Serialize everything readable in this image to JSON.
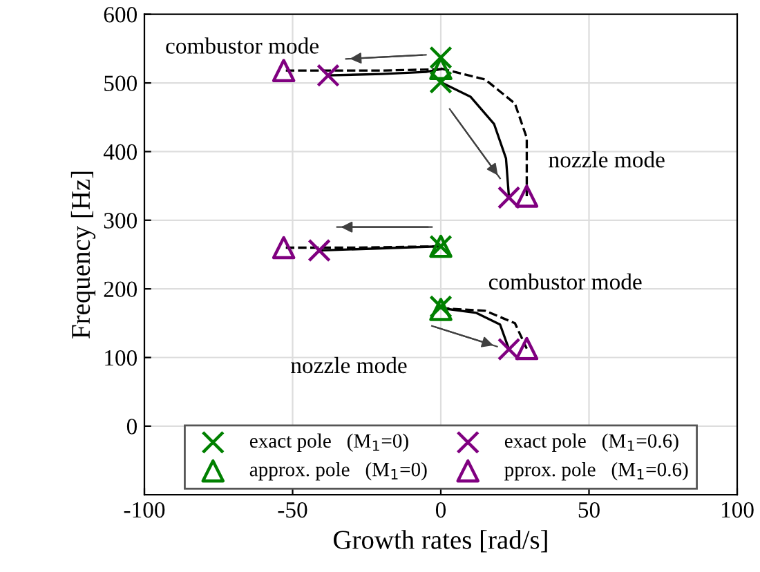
{
  "chart_data": {
    "type": "scatter",
    "xlabel": "Growth rates [rad/s]",
    "ylabel": "Frequency [Hz]",
    "xlim": [
      -100,
      100
    ],
    "xticks": [
      -100,
      -50,
      0,
      50,
      100
    ],
    "ylim": [
      -100,
      600
    ],
    "yticks": [
      0,
      100,
      200,
      300,
      400,
      500,
      600
    ],
    "grid": true,
    "legend": "bottom",
    "series": [
      {
        "type": "line",
        "color": "#000000",
        "line_style": "solid",
        "x": [
          0,
          -5,
          -20,
          -38
        ],
        "values": [
          520,
          516,
          513,
          511
        ]
      },
      {
        "type": "line",
        "color": "#000000",
        "line_style": "dashed",
        "x": [
          0,
          -20,
          -53
        ],
        "values": [
          520,
          518,
          518
        ]
      },
      {
        "type": "line",
        "color": "#000000",
        "line_style": "solid",
        "x": [
          0,
          10,
          18,
          22,
          23
        ],
        "values": [
          501,
          480,
          440,
          390,
          333
        ]
      },
      {
        "type": "line",
        "color": "#000000",
        "line_style": "dashed",
        "x": [
          0,
          15,
          25,
          29,
          29
        ],
        "values": [
          521,
          505,
          470,
          420,
          335
        ]
      },
      {
        "type": "line",
        "color": "#000000",
        "line_style": "solid",
        "x": [
          0,
          -20,
          -41
        ],
        "values": [
          262,
          259,
          256
        ]
      },
      {
        "type": "line",
        "color": "#000000",
        "line_style": "dashed",
        "x": [
          0,
          -30,
          -53
        ],
        "values": [
          262,
          260,
          260
        ]
      },
      {
        "type": "line",
        "color": "#000000",
        "line_style": "solid",
        "x": [
          0,
          12,
          20,
          23
        ],
        "values": [
          172,
          165,
          148,
          112
        ]
      },
      {
        "type": "line",
        "color": "#000000",
        "line_style": "dashed",
        "x": [
          0,
          15,
          25,
          29
        ],
        "values": [
          172,
          168,
          150,
          113
        ]
      },
      {
        "type": "line",
        "color": "#404040",
        "line_style": "solid",
        "x": [
          -5,
          -32
        ],
        "values": [
          541,
          535
        ]
      },
      {
        "type": "line",
        "color": "#404040",
        "line_style": "solid",
        "x": [
          3,
          20
        ],
        "values": [
          462,
          361
        ]
      },
      {
        "type": "line",
        "color": "#404040",
        "line_style": "solid",
        "x": [
          -3,
          -35
        ],
        "values": [
          290,
          290
        ]
      },
      {
        "type": "line",
        "color": "#404040",
        "line_style": "solid",
        "x": [
          -3,
          19
        ],
        "values": [
          146,
          116
        ]
      },
      {
        "name": "exact pole   (M$_{1}$=0)",
        "marker": "cross",
        "color": "#008000",
        "x": [
          0,
          0,
          0,
          0
        ],
        "values": [
          537,
          501,
          262,
          174
        ]
      },
      {
        "name": "approx. pole   (M$_{1}$=0)",
        "marker": "triangle",
        "color": "#008000",
        "x": [
          0,
          0,
          0
        ],
        "values": [
          521,
          262,
          170
        ]
      },
      {
        "name": "exact pole   (M$_{1}$=0.6)",
        "marker": "cross",
        "color": "#800080",
        "x": [
          -38,
          23,
          -41,
          23
        ],
        "values": [
          511,
          333,
          256,
          112
        ]
      },
      {
        "name": "pprox. pole   (M$_{1}$=0.6)",
        "marker": "triangle",
        "color": "#800080",
        "x": [
          -53,
          29,
          -53,
          29
        ],
        "values": [
          518,
          335,
          260,
          113
        ]
      }
    ],
    "annotations": [
      "combustor mode",
      "nozzle mode",
      "combustor mode",
      "nozzle mode"
    ]
  }
}
